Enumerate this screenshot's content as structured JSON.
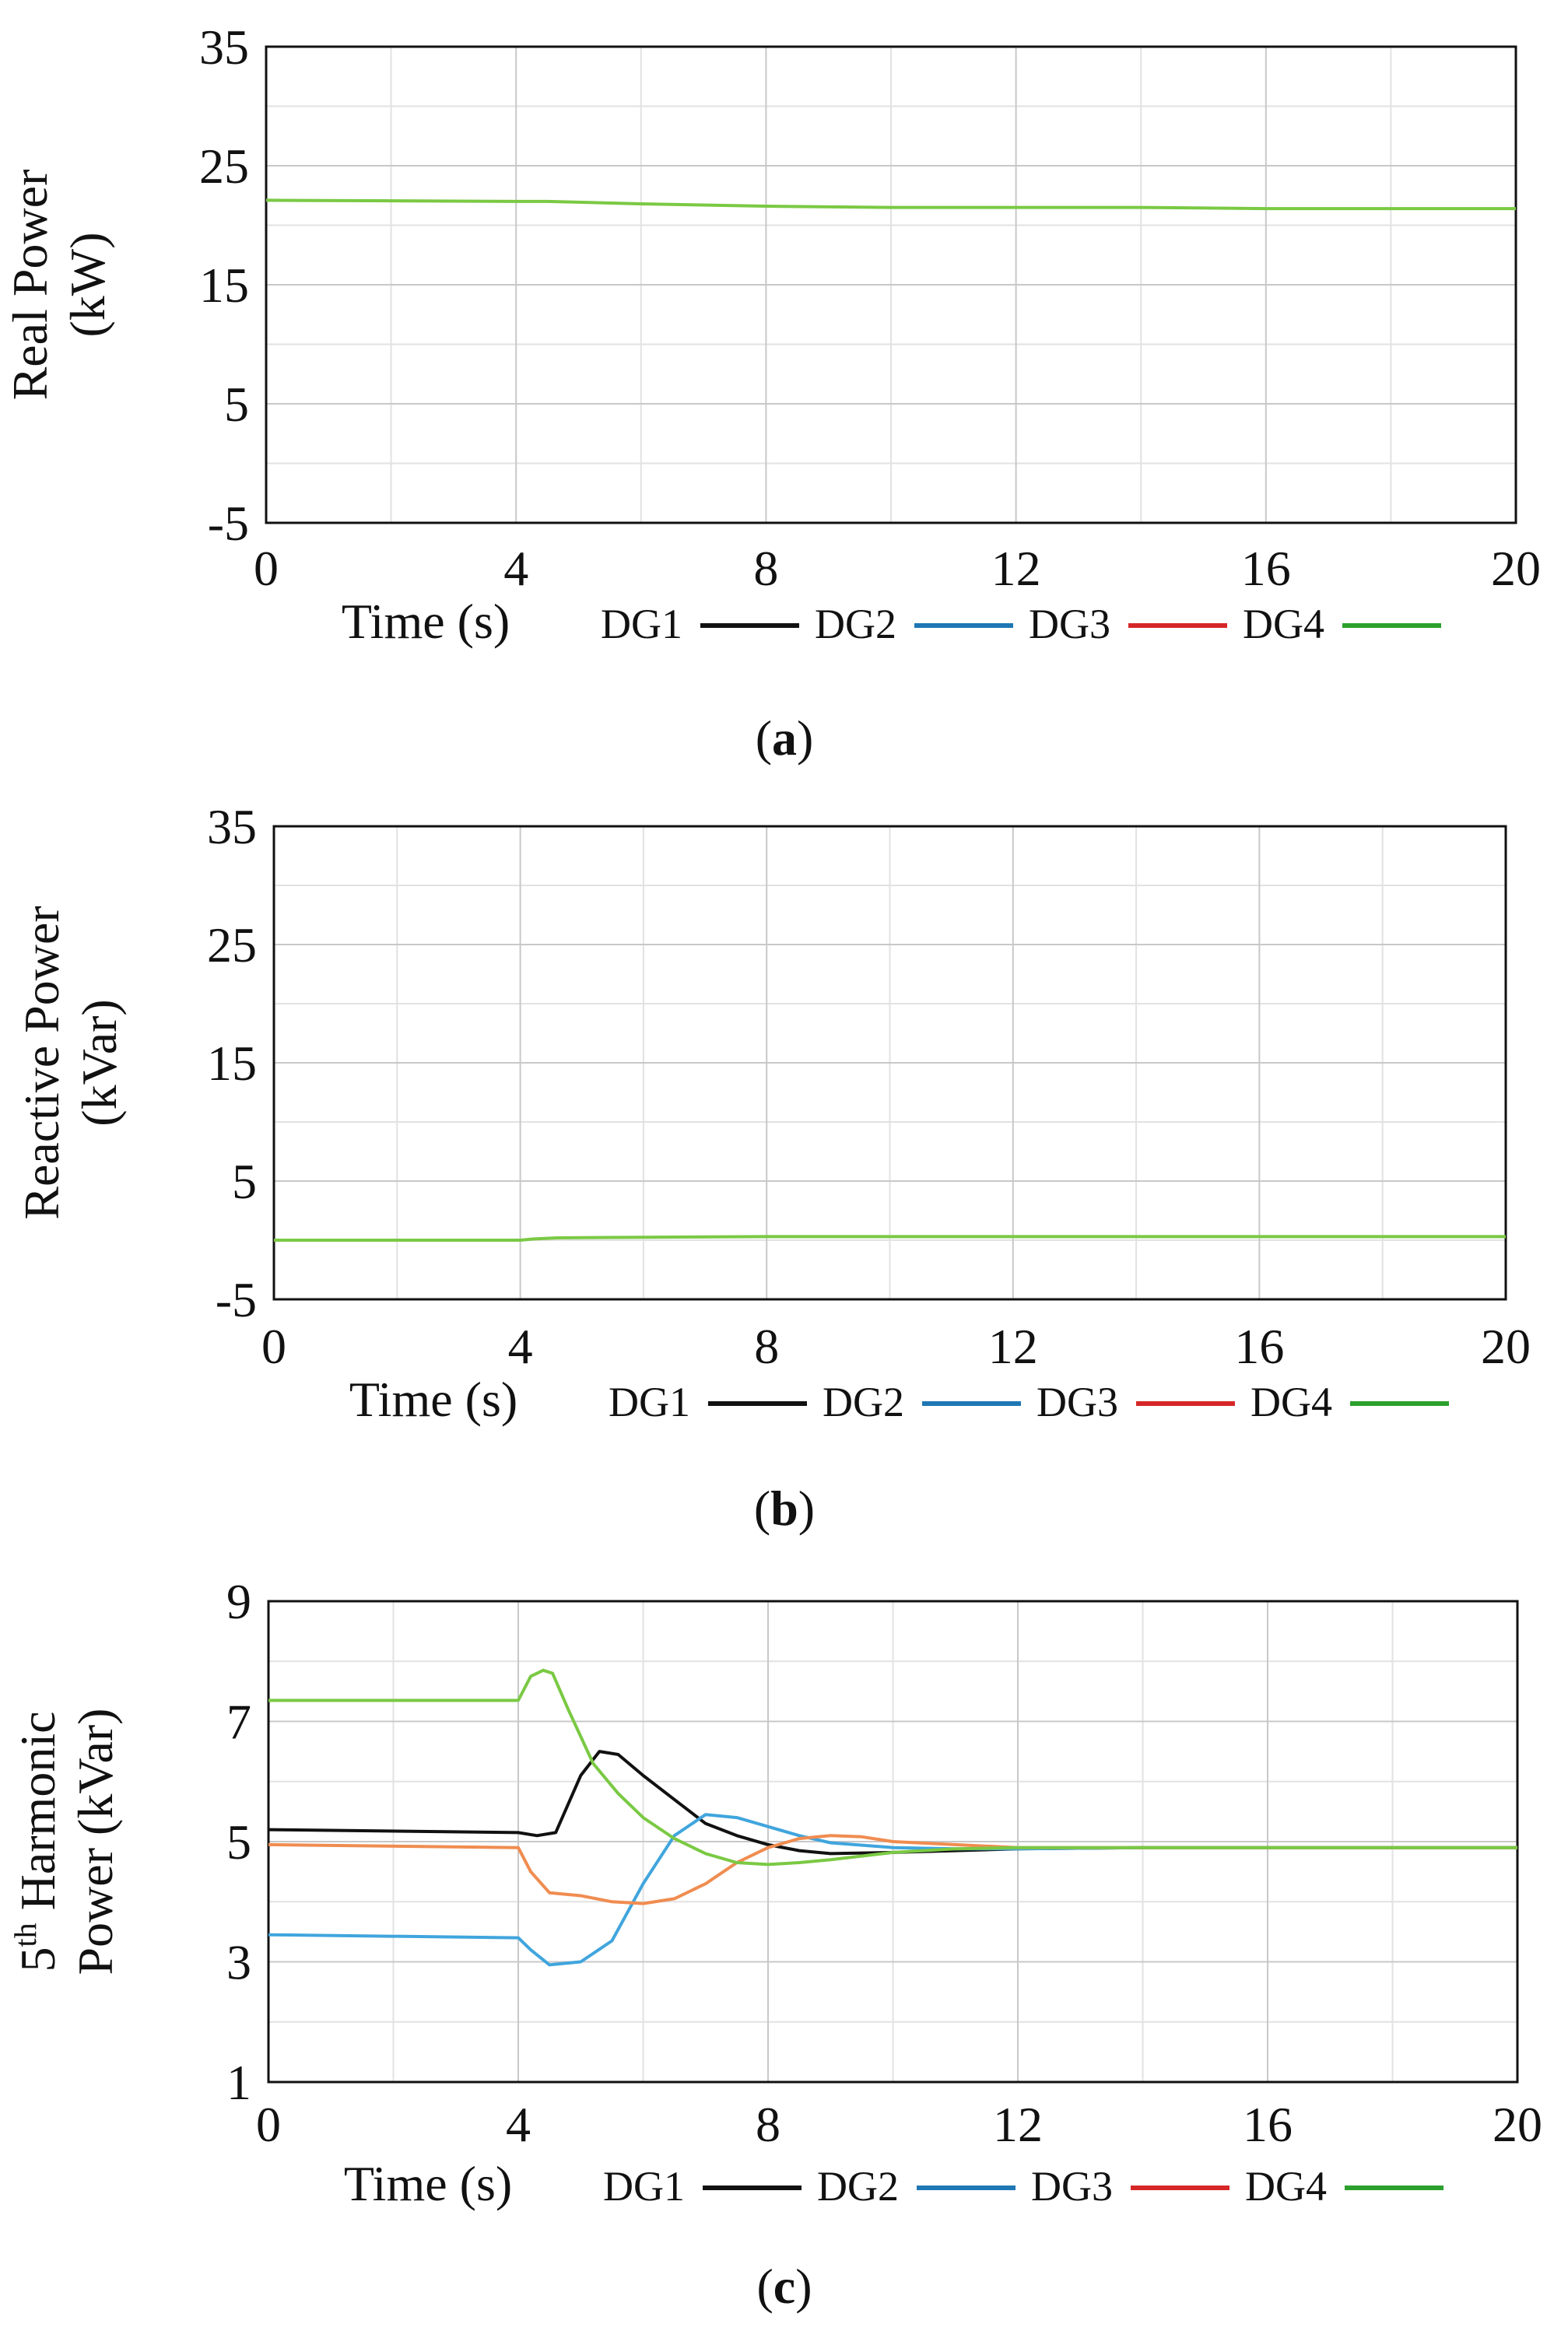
{
  "chart_data": [
    {
      "type": "line",
      "panel": "a",
      "caption": "a",
      "xlabel": "Time (s)",
      "ylabel": [
        "Real Power",
        "(kW)"
      ],
      "xlim": [
        0,
        20
      ],
      "ylim": [
        -5,
        35
      ],
      "xticks": [
        0,
        4,
        8,
        12,
        16,
        20
      ],
      "yticks": [
        -5,
        5,
        15,
        25,
        35
      ],
      "x_minor_grid": [
        2,
        6,
        10,
        14,
        18
      ],
      "y_minor_grid": [
        0,
        10,
        20,
        30
      ],
      "legend": [
        {
          "name": "DG1",
          "color": "#111111"
        },
        {
          "name": "DG2",
          "color": "#1f77b4"
        },
        {
          "name": "DG3",
          "color": "#d62728"
        },
        {
          "name": "DG4",
          "color": "#2ca02c"
        }
      ],
      "series": [
        {
          "name": "DG4",
          "color": "#7ac943",
          "x": [
            0,
            4,
            4.5,
            6,
            8,
            10,
            12,
            14,
            16,
            18,
            20
          ],
          "y": [
            22.1,
            22.0,
            22.0,
            21.8,
            21.6,
            21.5,
            21.5,
            21.5,
            21.4,
            21.4,
            21.4
          ]
        }
      ]
    },
    {
      "type": "line",
      "panel": "b",
      "caption": "b",
      "xlabel": "Time (s)",
      "ylabel": [
        "Reactive Power",
        "(kVar)"
      ],
      "xlim": [
        0,
        20
      ],
      "ylim": [
        -5,
        35
      ],
      "xticks": [
        0,
        4,
        8,
        12,
        16,
        20
      ],
      "yticks": [
        -5,
        5,
        15,
        25,
        35
      ],
      "x_minor_grid": [
        2,
        6,
        10,
        14,
        18
      ],
      "y_minor_grid": [
        0,
        10,
        20,
        30
      ],
      "legend": [
        {
          "name": "DG1",
          "color": "#111111"
        },
        {
          "name": "DG2",
          "color": "#1f77b4"
        },
        {
          "name": "DG3",
          "color": "#d62728"
        },
        {
          "name": "DG4",
          "color": "#2ca02c"
        }
      ],
      "series": [
        {
          "name": "DG4",
          "color": "#7ac943",
          "x": [
            0,
            4,
            4.2,
            4.6,
            6,
            8,
            12,
            16,
            20
          ],
          "y": [
            0.0,
            0.0,
            0.1,
            0.2,
            0.25,
            0.3,
            0.3,
            0.3,
            0.3
          ]
        }
      ]
    },
    {
      "type": "line",
      "panel": "c",
      "caption": "c",
      "xlabel": "Time (s)",
      "ylabel": [
        "Power (kVar)"
      ],
      "ylabel_prefix": "5",
      "ylabel_sup": "th",
      "ylabel_main": " Harmonic",
      "xlim": [
        0,
        20
      ],
      "ylim": [
        1,
        9
      ],
      "xticks": [
        0,
        4,
        8,
        12,
        16,
        20
      ],
      "yticks": [
        1,
        3,
        5,
        7,
        9
      ],
      "x_minor_grid": [
        2,
        6,
        10,
        14,
        18
      ],
      "y_minor_grid": [
        2,
        4,
        6,
        8
      ],
      "legend": [
        {
          "name": "DG1",
          "color": "#111111"
        },
        {
          "name": "DG2",
          "color": "#1f77b4"
        },
        {
          "name": "DG3",
          "color": "#d62728"
        },
        {
          "name": "DG4",
          "color": "#2ca02c"
        }
      ],
      "series": [
        {
          "name": "DG1",
          "color": "#111111",
          "x": [
            0,
            4,
            4.3,
            4.6,
            5.0,
            5.3,
            5.6,
            6.0,
            6.5,
            7.0,
            7.5,
            8.0,
            8.5,
            9.0,
            10,
            11,
            12,
            14,
            16,
            18,
            20
          ],
          "y": [
            5.2,
            5.15,
            5.1,
            5.15,
            6.1,
            6.5,
            6.45,
            6.1,
            5.7,
            5.3,
            5.1,
            4.95,
            4.85,
            4.8,
            4.82,
            4.85,
            4.88,
            4.9,
            4.9,
            4.9,
            4.9
          ]
        },
        {
          "name": "DG2",
          "color": "#40a5dd",
          "x": [
            0,
            4,
            4.2,
            4.5,
            5.0,
            5.5,
            6.0,
            6.5,
            7.0,
            7.5,
            8.0,
            8.5,
            9.0,
            10,
            11,
            12,
            14,
            16,
            18,
            20
          ],
          "y": [
            3.45,
            3.4,
            3.2,
            2.95,
            3.0,
            3.35,
            4.3,
            5.1,
            5.45,
            5.4,
            5.25,
            5.1,
            4.98,
            4.9,
            4.88,
            4.88,
            4.9,
            4.9,
            4.9,
            4.9
          ]
        },
        {
          "name": "DG3",
          "color": "#f08c50",
          "x": [
            0,
            4,
            4.2,
            4.5,
            5.0,
            5.5,
            6.0,
            6.5,
            7.0,
            7.5,
            8.0,
            8.5,
            9.0,
            9.5,
            10,
            11,
            12,
            14,
            16,
            18,
            20
          ],
          "y": [
            4.95,
            4.9,
            4.5,
            4.15,
            4.1,
            4.0,
            3.97,
            4.05,
            4.3,
            4.65,
            4.9,
            5.05,
            5.1,
            5.08,
            5.0,
            4.95,
            4.9,
            4.9,
            4.9,
            4.9,
            4.9
          ]
        },
        {
          "name": "DG4",
          "color": "#7ac943",
          "x": [
            0,
            4,
            4.2,
            4.4,
            4.55,
            4.8,
            5.2,
            5.6,
            6.0,
            6.5,
            7.0,
            7.5,
            8.0,
            8.5,
            9.0,
            10,
            11,
            12,
            14,
            16,
            18,
            20
          ],
          "y": [
            7.35,
            7.35,
            7.75,
            7.85,
            7.8,
            7.2,
            6.3,
            5.8,
            5.4,
            5.05,
            4.8,
            4.65,
            4.62,
            4.65,
            4.7,
            4.82,
            4.88,
            4.9,
            4.9,
            4.9,
            4.9,
            4.9
          ]
        }
      ]
    }
  ]
}
